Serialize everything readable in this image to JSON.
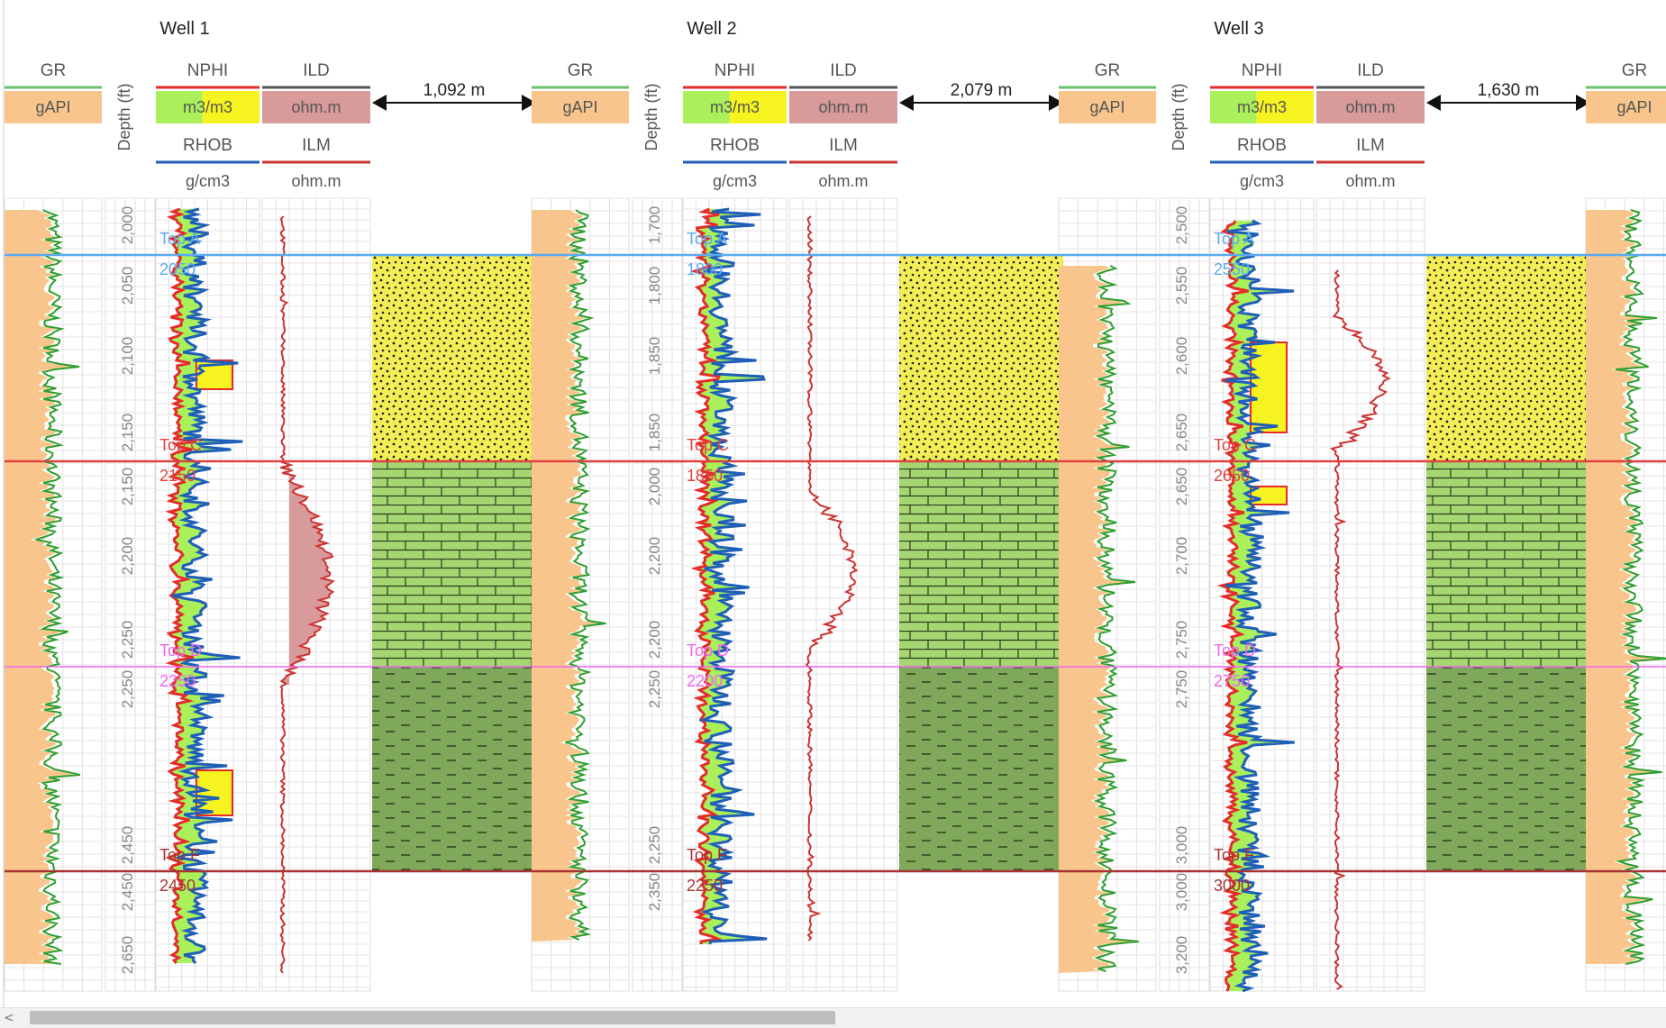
{
  "colors": {
    "gr_fill": "#f8c68c",
    "gr_line": "#2f9e2f",
    "nphi_line": "#e52b2b",
    "rhob_line": "#1f5fb8",
    "ild_line": "#cc3333",
    "ild_header_bar": "#555555",
    "ilm_bar": "#cc3333",
    "fill_green": "#a9f05a",
    "fill_yellow": "#f7f320",
    "ild_fill": "#d89a9a",
    "sand_yellow": "#f3ee55",
    "limestone_green": "#a6d672",
    "shale_green": "#7fa85a",
    "top_A": "#5aaaf0",
    "top_C": "#e04040",
    "top_D": "#ee66ee",
    "top_F": "#a83232"
  },
  "track_headers": {
    "gr": {
      "name": "GR",
      "unit": "gAPI"
    },
    "depth": {
      "label": "Depth (ft)"
    },
    "nphi": {
      "name": "NPHI",
      "unit": "m3/m3"
    },
    "rhob": {
      "name": "RHOB",
      "unit": "g/cm3"
    },
    "ild": {
      "name": "ILD",
      "unit": "ohm.m"
    },
    "ilm": {
      "name": "ILM",
      "unit": "ohm.m"
    }
  },
  "wells": [
    {
      "title": "Well 1",
      "depth_ticks": [
        "2,000",
        "2,050",
        "2,100",
        "2,150",
        "2,150",
        "2,200",
        "2,250",
        "2,250",
        "2,450",
        "2,450",
        "2,650"
      ],
      "tops": [
        {
          "name": "Top A",
          "depth": "2050"
        },
        {
          "name": "Top C",
          "depth": "2150"
        },
        {
          "name": "Top D",
          "depth": "2250"
        },
        {
          "name": "Top F",
          "depth": "2450"
        }
      ]
    },
    {
      "title": "Well 2",
      "depth_ticks": [
        "1,700",
        "1,800",
        "1,850",
        "1,850",
        "2,000",
        "2,200",
        "2,200",
        "2,250",
        "2,250",
        "2,350"
      ],
      "tops": [
        {
          "name": "Top A",
          "depth": "1800"
        },
        {
          "name": "Top C",
          "depth": "1850"
        },
        {
          "name": "Top D",
          "depth": "2200"
        },
        {
          "name": "Top F",
          "depth": "2250"
        }
      ]
    },
    {
      "title": "Well 3",
      "depth_ticks": [
        "2,500",
        "2,550",
        "2,600",
        "2,650",
        "2,650",
        "2,700",
        "2,750",
        "2,750",
        "3,000",
        "3,000",
        "3,200"
      ],
      "tops": [
        {
          "name": "Top A",
          "depth": "2550"
        },
        {
          "name": "Top C",
          "depth": "2650"
        },
        {
          "name": "Top D",
          "depth": "2750"
        },
        {
          "name": "Top F",
          "depth": "3000"
        }
      ]
    },
    {
      "title": "",
      "depth_ticks": [],
      "tops": []
    }
  ],
  "distances": [
    "1,092 m",
    "2,079 m",
    "1,630 m"
  ],
  "scrollbar": {
    "left_arrow": "<"
  }
}
